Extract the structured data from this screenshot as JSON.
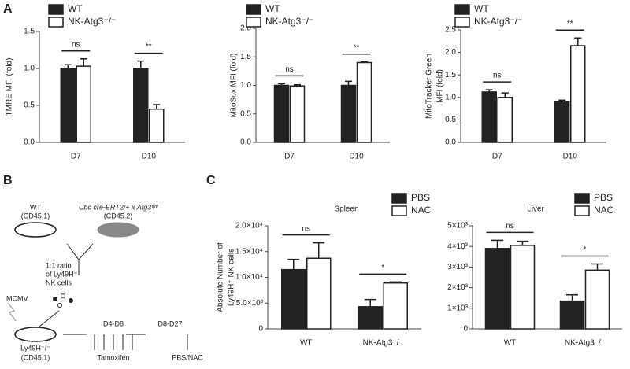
{
  "panel_labels": [
    "A",
    "B",
    "C"
  ],
  "chart_data": [
    {
      "type": "bar",
      "ylabel": [
        "TMRE MFI (fold)"
      ],
      "categories": [
        "D7",
        "D10"
      ],
      "series": [
        {
          "name": "WT",
          "color": "#222222",
          "values": [
            1.0,
            1.0
          ],
          "errors": [
            0.05,
            0.1
          ]
        },
        {
          "name": "NK-Atg3⁻/⁻",
          "color": "#ffffff",
          "values": [
            1.03,
            0.45
          ],
          "errors": [
            0.1,
            0.06
          ]
        }
      ],
      "annotations": [
        "ns",
        "**"
      ],
      "ylim": [
        0,
        1.5
      ],
      "yticks": [
        {
          "value": 0,
          "label": "0.0"
        },
        0.5,
        {
          "value": 1,
          "label": "1.0"
        },
        1.5
      ]
    },
    {
      "type": "bar",
      "ylabel": [
        "MitoSox  MFI (fold)"
      ],
      "categories": [
        "D7",
        "D10"
      ],
      "series": [
        {
          "name": "WT",
          "color": "#222222",
          "values": [
            1.0,
            1.0
          ],
          "errors": [
            0.03,
            0.07
          ]
        },
        {
          "name": "NK-Atg3⁻/⁻",
          "color": "#ffffff",
          "values": [
            0.99,
            1.4
          ],
          "errors": [
            0.02,
            0.01
          ]
        }
      ],
      "annotations": [
        "ns",
        "**"
      ],
      "ylim": [
        0,
        2
      ],
      "yticks": [
        {
          "value": 0,
          "label": "0.0"
        },
        0.5,
        {
          "value": 1,
          "label": "1.0"
        },
        1.5,
        {
          "value": 2,
          "label": "2.0"
        }
      ]
    },
    {
      "type": "bar",
      "ylabel": [
        "MitoTracker Green",
        "MFI (fold)"
      ],
      "categories": [
        "D7",
        "D10"
      ],
      "series": [
        {
          "name": "WT",
          "color": "#222222",
          "values": [
            1.12,
            0.9
          ],
          "errors": [
            0.05,
            0.04
          ]
        },
        {
          "name": "NK-Atg3⁻/⁻",
          "color": "#ffffff",
          "values": [
            1.0,
            2.15
          ],
          "errors": [
            0.1,
            0.17
          ]
        }
      ],
      "annotations": [
        "ns",
        "**"
      ],
      "ylim": [
        0,
        2.5
      ],
      "yticks": [
        {
          "value": 0,
          "label": "0.0"
        },
        0.5,
        {
          "value": 1,
          "label": "1.0"
        },
        1.5,
        {
          "value": 2,
          "label": "2.0"
        },
        2.5
      ]
    },
    {
      "type": "bar",
      "title": "Spleen",
      "ylabel": [
        "Absolute Number of",
        "Ly49H⁺ NK cells"
      ],
      "categories": [
        "WT",
        "NK-Atg3⁻/⁻"
      ],
      "series": [
        {
          "name": "PBS",
          "color": "#222222",
          "values": [
            11500,
            4300
          ],
          "errors": [
            2000,
            1400
          ]
        },
        {
          "name": "NAC",
          "color": "#ffffff",
          "values": [
            13700,
            8900
          ],
          "errors": [
            3000,
            200
          ]
        }
      ],
      "annotations": [
        "ns",
        "*"
      ],
      "ylim": [
        0,
        20000
      ],
      "yticks": [
        0,
        {
          "value": 5000,
          "label": "5.0×10³"
        },
        {
          "value": 10000,
          "label": "1.0×10⁴"
        },
        {
          "value": 15000,
          "label": "1.5×10⁴"
        },
        {
          "value": 20000,
          "label": "2.0×10⁴"
        }
      ]
    },
    {
      "type": "bar",
      "title": "Liver",
      "categories": [
        "WT",
        "NK-Atg3⁻/⁻"
      ],
      "series": [
        {
          "name": "PBS",
          "color": "#222222",
          "values": [
            3900,
            1350
          ],
          "errors": [
            400,
            300
          ]
        },
        {
          "name": "NAC",
          "color": "#ffffff",
          "values": [
            4050,
            2850
          ],
          "errors": [
            200,
            300
          ]
        }
      ],
      "annotations": [
        "ns",
        "*"
      ],
      "ylim": [
        0,
        5000
      ],
      "yticks": [
        0,
        {
          "value": 1000,
          "label": "1×10³"
        },
        {
          "value": 2000,
          "label": "2×10³"
        },
        {
          "value": 3000,
          "label": "3×10³"
        },
        {
          "value": 4000,
          "label": "4×10³"
        },
        {
          "value": 5000,
          "label": "5×10³"
        }
      ]
    }
  ],
  "diagram": {
    "wt": "WT",
    "wt_cd": "(CD45.1)",
    "donor": "Ubc cre-ERT2/+ x Atg3ᶠˡ/ᶠˡ",
    "donor_cd": "(CD45.2)",
    "ratio": [
      "1:1 ratio",
      "of Ly49H⁺",
      "NK cells"
    ],
    "virus": "MCMV",
    "host": "Ly49H⁻/⁻",
    "host_cd": "(CD45.1)",
    "d1": "D4-D8",
    "tam": "Tamoxifen",
    "d2": "D8-D27",
    "treat": "PBS/NAC"
  }
}
